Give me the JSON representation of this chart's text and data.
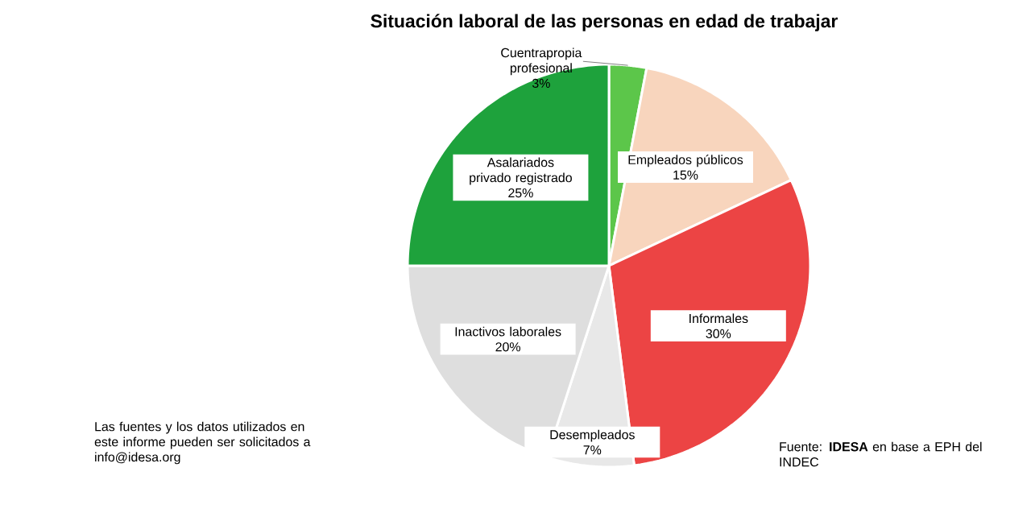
{
  "chart_data": {
    "type": "pie",
    "title": "Situación laboral de las personas en edad de trabajar",
    "categories": [
      "Cuentrapropia profesional",
      "Empleados públicos",
      "Informales",
      "Desempleados",
      "Inactivos laborales",
      "Asalariados privado registrado"
    ],
    "values": [
      3,
      15,
      30,
      7,
      20,
      25
    ],
    "value_labels": [
      "3%",
      "15%",
      "30%",
      "7%",
      "20%",
      "25%"
    ],
    "colors": [
      "#5cc64a",
      "#f8d5bd",
      "#ec4444",
      "#e8e8e8",
      "#dedede",
      "#1ea23c"
    ],
    "annotations": [
      "Las fuentes y los datos utilizados en este informe pueden ser solicitados a info@idesa.org",
      "Fuente: **IDESA** en base a EPH del INDEC"
    ]
  }
}
